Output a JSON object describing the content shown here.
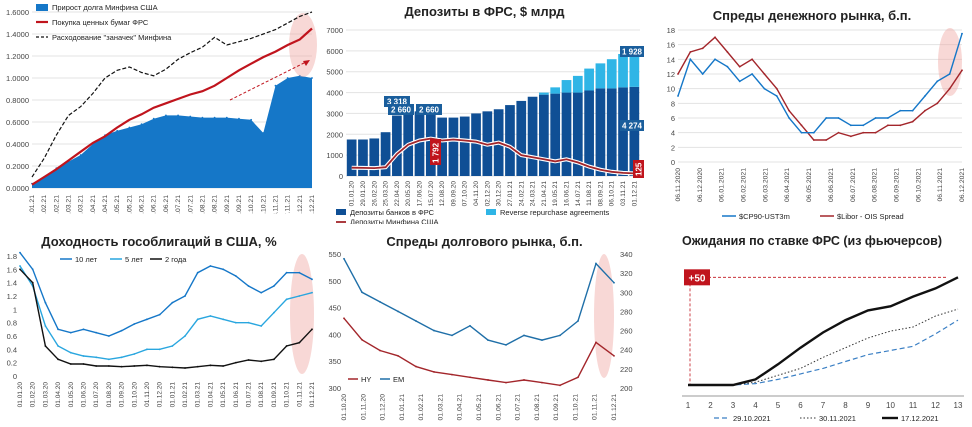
{
  "colors": {
    "dark_blue": "#0f4f95",
    "mid_blue": "#1577c8",
    "light_blue": "#29a6df",
    "cyan": "#2fb5e6",
    "red": "#c0141d",
    "dark_red": "#a3262b",
    "black": "#111111",
    "highlight": "#f0a8a4",
    "callout_blue": "#1a5e9c"
  },
  "chart_data": [
    {
      "id": "panel1",
      "type": "area",
      "title": "",
      "legend": [
        "Прирост долга Минфина США",
        "Покупка ценных бумаг ФРС",
        "Расходование \"заначек\" Минфина"
      ],
      "legend_position": "top-left",
      "ylim": [
        0,
        1.6
      ],
      "yticks": [
        "0.0000",
        "0.2000",
        "0.4000",
        "0.6000",
        "0.8000",
        "1.0000",
        "1.2000",
        "1.4000",
        "1.6000"
      ],
      "xticks": [
        "27.01.21",
        "10.02.21",
        "24.02.21",
        "10.03.21",
        "24.03.21",
        "07.04.21",
        "21.04.21",
        "05.05.21",
        "19.05.21",
        "02.06.21",
        "16.06.21",
        "30.06.21",
        "14.07.21",
        "28.07.21",
        "11.08.21",
        "25.08.21",
        "08.09.21",
        "22.09.21",
        "06.10.21",
        "20.10.21",
        "03.11.21",
        "17.11.21",
        "01.12.21",
        "15.12.21"
      ],
      "grid": true,
      "series": [
        {
          "name": "Прирост долга Минфина США",
          "kind": "area",
          "values": [
            0.04,
            0.1,
            0.18,
            0.24,
            0.3,
            0.4,
            0.48,
            0.52,
            0.55,
            0.58,
            0.63,
            0.66,
            0.66,
            0.65,
            0.64,
            0.64,
            0.64,
            0.63,
            0.62,
            0.5,
            0.93,
            1.0,
            1.02,
            1.0
          ]
        },
        {
          "name": "Покупка ценных бумаг ФРС",
          "kind": "line",
          "values": [
            0.03,
            0.1,
            0.17,
            0.25,
            0.33,
            0.41,
            0.47,
            0.55,
            0.62,
            0.67,
            0.73,
            0.77,
            0.81,
            0.85,
            0.88,
            0.93,
            1.0,
            1.07,
            1.13,
            1.19,
            1.24,
            1.3,
            1.35,
            1.45
          ]
        },
        {
          "name": "Расходование \"заначек\" Минфина",
          "kind": "dashed",
          "values": [
            0.1,
            0.27,
            0.48,
            0.66,
            0.74,
            0.86,
            1.0,
            1.07,
            1.1,
            1.05,
            1.02,
            1.08,
            1.17,
            1.23,
            1.28,
            1.37,
            1.3,
            1.33,
            1.36,
            1.4,
            1.44,
            1.5,
            1.56,
            1.6
          ]
        }
      ]
    },
    {
      "id": "panel2",
      "type": "bar",
      "title": "Депозиты в ФРС, $ млрд",
      "ylim": [
        0,
        7000
      ],
      "yticks": [
        "0",
        "1000",
        "2000",
        "3000",
        "4000",
        "5000",
        "6000",
        "7000"
      ],
      "xticks": [
        "01.01.20",
        "29.01.20",
        "26.02.20",
        "25.03.20",
        "22.04.20",
        "20.05.20",
        "17.06.20",
        "15.07.20",
        "12.08.20",
        "09.09.20",
        "07.10.20",
        "04.11.20",
        "02.12.20",
        "30.12.20",
        "27.01.21",
        "24.02.21",
        "24.03.21",
        "21.04.21",
        "19.05.21",
        "16.06.21",
        "14.07.21",
        "11.08.21",
        "08.09.21",
        "06.10.21",
        "03.11.21",
        "01.12.21"
      ],
      "legend": [
        "Депозиты банков в ФРС",
        "Reverse repurchase agreements",
        "Депозиты Минфина США"
      ],
      "legend_position": "bottom",
      "annotations": [
        "3 318",
        "2 660",
        "1 792",
        "1 928",
        "4 274",
        "125"
      ],
      "series": [
        {
          "name": "Депозиты банков в ФРС",
          "values": [
            1750,
            1750,
            1800,
            2100,
            2900,
            3200,
            3100,
            2950,
            2800,
            2800,
            2850,
            3000,
            3100,
            3200,
            3400,
            3600,
            3800,
            3900,
            3950,
            4000,
            4000,
            4100,
            4200,
            4200,
            4250,
            4274
          ]
        },
        {
          "name": "Reverse repurchase agreements",
          "values": [
            0,
            0,
            0,
            0,
            0,
            0,
            0,
            0,
            0,
            0,
            0,
            0,
            0,
            0,
            0,
            0,
            0,
            100,
            300,
            600,
            800,
            1050,
            1200,
            1400,
            1600,
            1928
          ]
        },
        {
          "name": "Депозиты Минфина США",
          "values": [
            400,
            390,
            380,
            420,
            1050,
            1500,
            1700,
            1792,
            1700,
            1750,
            1700,
            1650,
            1500,
            1600,
            1400,
            1000,
            900,
            800,
            700,
            800,
            650,
            450,
            300,
            200,
            150,
            125
          ]
        }
      ]
    },
    {
      "id": "panel3",
      "type": "line",
      "title": "Спреды денежного рынка, б.п.",
      "ylim": [
        0,
        18
      ],
      "yticks": [
        "0",
        "2",
        "4",
        "6",
        "8",
        "10",
        "12",
        "14",
        "16",
        "18"
      ],
      "xticks": [
        "06.11.2020",
        "06.12.2020",
        "06.01.2021",
        "06.02.2021",
        "06.03.2021",
        "06.04.2021",
        "06.05.2021",
        "06.06.2021",
        "06.07.2021",
        "06.08.2021",
        "06.09.2021",
        "06.10.2021",
        "06.11.2021",
        "06.12.2021"
      ],
      "legend": [
        "$CP90-UST3m",
        "$Libor - OIS Spread"
      ],
      "legend_position": "bottom",
      "series": [
        {
          "name": "$CP90-UST3m",
          "values": [
            9,
            14,
            12,
            14,
            13,
            11,
            12,
            10,
            9,
            6,
            4,
            4,
            6,
            6,
            5,
            5,
            6,
            6,
            7,
            7,
            9,
            11,
            12,
            17.5
          ]
        },
        {
          "name": "$Libor - OIS Spread",
          "values": [
            12,
            15,
            15.5,
            17,
            15,
            13,
            14,
            12,
            10,
            7,
            5,
            3,
            3,
            4,
            3.5,
            4,
            4,
            5,
            5,
            5.5,
            7,
            8,
            10,
            12.5
          ]
        }
      ]
    },
    {
      "id": "panel4",
      "type": "line",
      "title": "Доходность гособлигаций в США, %",
      "ylim": [
        0,
        1.8
      ],
      "yticks": [
        "0",
        "0.2",
        "0.4",
        "0.6",
        "0.8",
        "1",
        "1.2",
        "1.4",
        "1.6",
        "1.8"
      ],
      "xticks": [
        "01.01.20",
        "01.02.20",
        "01.03.20",
        "01.04.20",
        "01.05.20",
        "01.06.20",
        "01.07.20",
        "01.08.20",
        "01.09.20",
        "01.10.20",
        "01.11.20",
        "01.12.20",
        "01.01.21",
        "01.02.21",
        "01.03.21",
        "01.04.21",
        "01.05.21",
        "01.06.21",
        "01.07.21",
        "01.08.21",
        "01.09.21",
        "01.10.21",
        "01.11.21",
        "01.12.21"
      ],
      "legend": [
        "10 лет",
        "5 лет",
        "2 года"
      ],
      "legend_position": "top",
      "series": [
        {
          "name": "10 лет",
          "values": [
            1.85,
            1.6,
            1.1,
            0.7,
            0.65,
            0.7,
            0.65,
            0.6,
            0.68,
            0.78,
            0.85,
            0.92,
            1.1,
            1.2,
            1.55,
            1.65,
            1.6,
            1.5,
            1.35,
            1.25,
            1.35,
            1.55,
            1.55,
            1.45
          ]
        },
        {
          "name": "5 лет",
          "values": [
            1.65,
            1.35,
            0.75,
            0.45,
            0.35,
            0.3,
            0.28,
            0.25,
            0.28,
            0.33,
            0.4,
            0.4,
            0.45,
            0.6,
            0.85,
            0.9,
            0.85,
            0.8,
            0.8,
            0.75,
            0.95,
            1.15,
            1.2,
            1.25
          ]
        },
        {
          "name": "2 года",
          "values": [
            1.6,
            1.4,
            0.45,
            0.25,
            0.18,
            0.18,
            0.15,
            0.15,
            0.14,
            0.15,
            0.16,
            0.14,
            0.13,
            0.12,
            0.14,
            0.16,
            0.15,
            0.2,
            0.24,
            0.22,
            0.25,
            0.45,
            0.5,
            0.7
          ]
        }
      ]
    },
    {
      "id": "panel5",
      "type": "line",
      "title": "Спреды долгового рынка, б.п.",
      "ylim_left": [
        300,
        550
      ],
      "ylim_right": [
        200,
        340
      ],
      "yticks_left": [
        "300",
        "350",
        "400",
        "450",
        "500",
        "550"
      ],
      "yticks_right": [
        "200",
        "220",
        "240",
        "260",
        "280",
        "300",
        "320",
        "340"
      ],
      "xticks": [
        "01.10.20",
        "01.11.20",
        "01.12.20",
        "01.01.21",
        "01.02.21",
        "01.03.21",
        "01.04.21",
        "01.05.21",
        "01.06.21",
        "01.07.21",
        "01.08.21",
        "01.09.21",
        "01.10.21",
        "01.11.21",
        "01.12.21"
      ],
      "legend": [
        "HY",
        "EM"
      ],
      "legend_position": "bottom-left",
      "series": [
        {
          "name": "HY",
          "axis": "left",
          "values": [
            430,
            390,
            370,
            360,
            340,
            330,
            325,
            320,
            315,
            310,
            315,
            310,
            305,
            320,
            385,
            360
          ]
        },
        {
          "name": "EM",
          "axis": "right",
          "values": [
            335,
            300,
            290,
            280,
            270,
            260,
            255,
            265,
            250,
            245,
            255,
            250,
            255,
            270,
            330,
            310
          ]
        }
      ]
    },
    {
      "id": "panel6",
      "type": "line",
      "title": "Ожидания по ставке ФРС (из фьючерсов)",
      "ylim": [
        0,
        1
      ],
      "xticks": [
        "1",
        "2",
        "3",
        "4",
        "5",
        "6",
        "7",
        "8",
        "9",
        "10",
        "11",
        "12",
        "13"
      ],
      "legend": [
        "29.10.2021",
        "30.11.2021",
        "17.12.2021"
      ],
      "legend_position": "bottom",
      "annotations": [
        "+50"
      ],
      "series": [
        {
          "name": "29.10.2021",
          "values": [
            0.08,
            0.08,
            0.08,
            0.09,
            0.12,
            0.16,
            0.2,
            0.25,
            0.3,
            0.33,
            0.36,
            0.45,
            0.55
          ]
        },
        {
          "name": "30.11.2021",
          "values": [
            0.08,
            0.08,
            0.08,
            0.1,
            0.15,
            0.2,
            0.28,
            0.35,
            0.42,
            0.47,
            0.5,
            0.58,
            0.63
          ]
        },
        {
          "name": "17.12.2021",
          "values": [
            0.08,
            0.08,
            0.08,
            0.12,
            0.23,
            0.35,
            0.46,
            0.55,
            0.62,
            0.65,
            0.72,
            0.78,
            0.86
          ]
        }
      ]
    }
  ]
}
